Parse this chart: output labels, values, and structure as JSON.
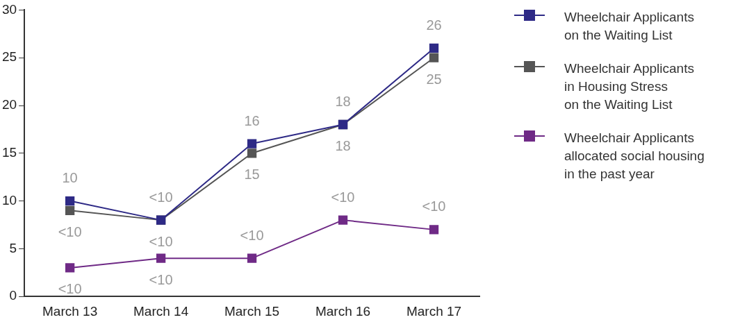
{
  "chart_data": {
    "type": "line",
    "categories": [
      "March 13",
      "March 14",
      "March 15",
      "March 16",
      "March 17"
    ],
    "series": [
      {
        "name": "Wheelchair Applicants\non the Waiting List",
        "color": "#2e2a86",
        "values": [
          10,
          8,
          16,
          18,
          26
        ],
        "value_labels": [
          "10",
          "<10",
          "16",
          "18",
          "26"
        ]
      },
      {
        "name": "Wheelchair Applicants\nin Housing Stress\non the Waiting List",
        "color": "#555555",
        "values": [
          9,
          8,
          15,
          18,
          25
        ],
        "value_labels": [
          "<10",
          "<10",
          "15",
          "18",
          "25"
        ]
      },
      {
        "name": "Wheelchair Applicants\nallocated social housing\nin the past year",
        "color": "#6f2a86",
        "values": [
          3,
          4,
          4,
          8,
          7
        ],
        "value_labels": [
          "<10",
          "<10",
          "<10",
          "<10",
          "<10"
        ]
      }
    ],
    "ylim": [
      0,
      30
    ],
    "yticks": [
      0,
      5,
      10,
      15,
      20,
      25,
      30
    ],
    "grid": false,
    "legend": "right",
    "marker": "square",
    "line_style": "solid"
  }
}
